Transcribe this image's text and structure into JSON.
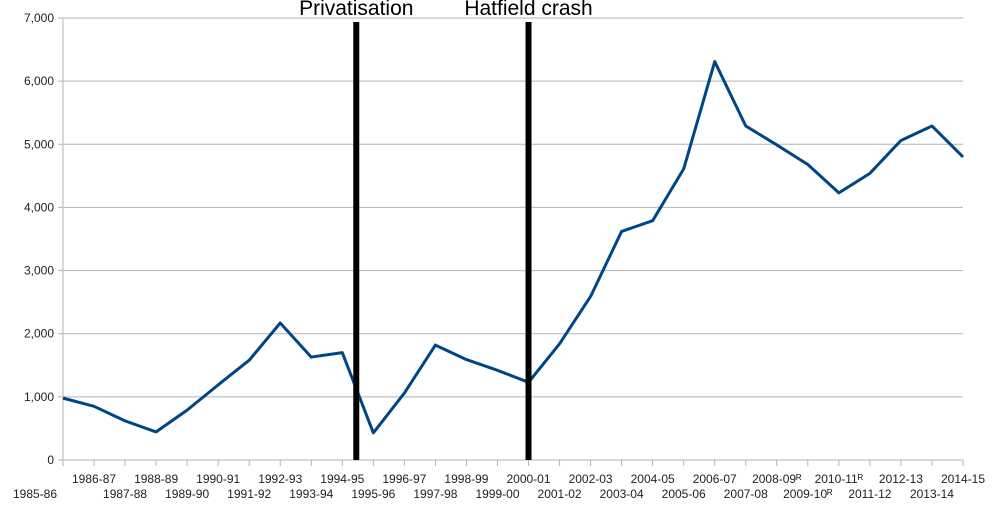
{
  "chart_data": {
    "type": "line",
    "categories": [
      "1985-86",
      "1986-87",
      "1987-88",
      "1988-89",
      "1989-90",
      "1990-91",
      "1991-92",
      "1992-93",
      "1993-94",
      "1994-95",
      "1995-96",
      "1996-97",
      "1997-98",
      "1998-99",
      "1999-00",
      "2000-01",
      "2001-02",
      "2002-03",
      "2003-04",
      "2004-05",
      "2005-06",
      "2006-07",
      "2007-08",
      "2008-09ᴿ",
      "2009-10ᴿ",
      "2010-11ᴿ",
      "2011-12",
      "2012-13",
      "2013-14",
      "2014-15"
    ],
    "series": [
      {
        "color": "#004586",
        "values": [
          980,
          850,
          620,
          445,
          790,
          1190,
          1580,
          2170,
          1630,
          1700,
          430,
          1060,
          1820,
          1590,
          1420,
          1230,
          1840,
          2590,
          3620,
          3790,
          4610,
          6310,
          5290,
          4990,
          4680,
          4230,
          4540,
          5060,
          5290,
          4800
        ]
      }
    ],
    "ylim": [
      0,
      7000
    ],
    "yticks": [
      0,
      {
        "value": 1000,
        "label": "1,000"
      },
      {
        "value": 2000,
        "label": "2,000"
      },
      {
        "value": 3000,
        "label": "3,000"
      },
      {
        "value": 4000,
        "label": "4,000"
      },
      {
        "value": 5000,
        "label": "5,000"
      },
      {
        "value": 6000,
        "label": "6,000"
      },
      {
        "value": 7000,
        "label": "7,000"
      }
    ],
    "grid": true,
    "annotations": [
      {
        "text": "Privatisation",
        "category": "1994-95"
      },
      {
        "text": "Hatfield crash",
        "category": "2000-01"
      }
    ]
  }
}
